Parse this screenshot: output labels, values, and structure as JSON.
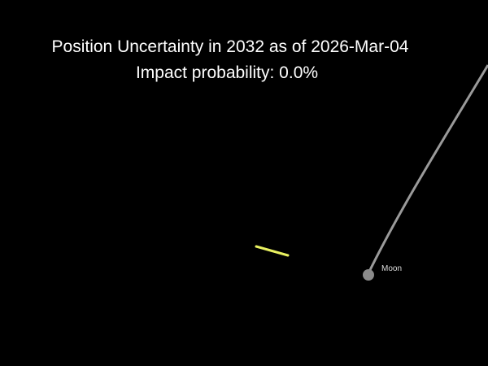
{
  "title": "Position Uncertainty in 2032 as of 2026-Mar-04",
  "subtitle": "Impact probability: 0.0%",
  "moon_label": "Moon",
  "colors": {
    "background": "#000000",
    "uncertainty_region": "#e8f060",
    "moon_orbit": "#9a9a9a",
    "moon": "#8a8a8a",
    "text": "#ffffff"
  }
}
